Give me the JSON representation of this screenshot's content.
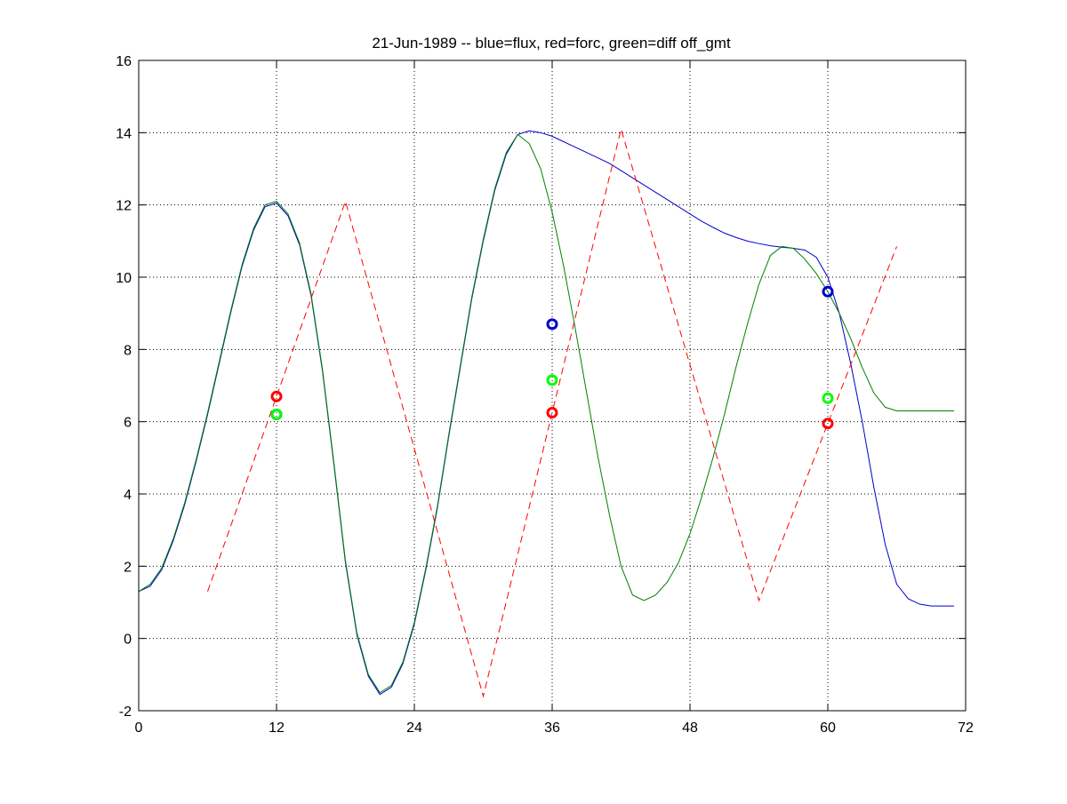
{
  "chart_data": {
    "type": "line",
    "title": "21-Jun-1989 -- blue=flux, red=forc, green=diff off_gmt",
    "xlabel": "",
    "ylabel": "",
    "xlim": [
      0,
      72
    ],
    "ylim": [
      -2,
      16
    ],
    "xticks": [
      0,
      12,
      24,
      36,
      48,
      60,
      72
    ],
    "yticks": [
      -2,
      0,
      2,
      4,
      6,
      8,
      10,
      12,
      14,
      16
    ],
    "xtick_labels": [
      "0",
      "12",
      "24",
      "36",
      "48",
      "60",
      "72"
    ],
    "ytick_labels": [
      "-2",
      "0",
      "2",
      "4",
      "6",
      "8",
      "10",
      "12",
      "14",
      "16"
    ],
    "grid": true,
    "series": [
      {
        "color": "#0000cc",
        "style": "solid",
        "x": [
          0,
          1,
          2,
          3,
          4,
          5,
          6,
          7,
          8,
          9,
          10,
          11,
          12,
          13,
          14,
          15,
          16,
          17,
          18,
          19,
          20,
          21,
          22,
          23,
          24,
          25,
          26,
          27,
          28,
          29,
          30,
          31,
          32,
          33,
          34,
          35,
          36,
          37,
          38,
          39,
          40,
          41,
          42,
          43,
          44,
          45,
          46,
          47,
          48,
          49,
          50,
          51,
          52,
          53,
          54,
          55,
          56,
          57,
          58,
          59,
          60,
          61,
          62,
          63,
          64,
          65,
          66,
          67,
          68,
          69,
          70,
          71
        ],
        "y": [
          1.3,
          1.45,
          1.9,
          2.7,
          3.7,
          4.9,
          6.2,
          7.6,
          9.0,
          10.3,
          11.3,
          11.95,
          12.05,
          11.7,
          10.9,
          9.5,
          7.4,
          4.8,
          2.1,
          0.1,
          -1.05,
          -1.55,
          -1.35,
          -0.7,
          0.4,
          1.9,
          3.6,
          5.6,
          7.5,
          9.4,
          11.0,
          12.4,
          13.4,
          13.95,
          14.05,
          14.0,
          13.9,
          13.75,
          13.6,
          13.45,
          13.3,
          13.15,
          12.95,
          12.75,
          12.55,
          12.35,
          12.15,
          11.95,
          11.75,
          11.55,
          11.38,
          11.22,
          11.1,
          11.0,
          10.93,
          10.87,
          10.83,
          10.8,
          10.75,
          10.55,
          10.0,
          9.0,
          7.6,
          6.0,
          4.2,
          2.6,
          1.5,
          1.1,
          0.95,
          0.9,
          0.9,
          0.9
        ]
      },
      {
        "color": "#008000",
        "style": "solid",
        "x": [
          0,
          1,
          2,
          3,
          4,
          5,
          6,
          7,
          8,
          9,
          10,
          11,
          12,
          13,
          14,
          15,
          16,
          17,
          18,
          19,
          20,
          21,
          22,
          23,
          24,
          25,
          26,
          27,
          28,
          29,
          30,
          31,
          32,
          33,
          34,
          35,
          36,
          37,
          38,
          39,
          40,
          41,
          42,
          43,
          44,
          45,
          46,
          47,
          48,
          49,
          50,
          51,
          52,
          53,
          54,
          55,
          56,
          57,
          58,
          59,
          60,
          61,
          62,
          63,
          64,
          65,
          66,
          67,
          68,
          69,
          70,
          71
        ],
        "y": [
          1.3,
          1.5,
          1.95,
          2.75,
          3.75,
          4.95,
          6.25,
          7.65,
          9.05,
          10.35,
          11.35,
          12.0,
          12.1,
          11.75,
          10.95,
          9.55,
          7.45,
          4.85,
          2.15,
          0.15,
          -1.0,
          -1.5,
          -1.3,
          -0.65,
          0.45,
          1.95,
          3.65,
          5.65,
          7.55,
          9.45,
          11.05,
          12.45,
          13.45,
          13.95,
          13.7,
          13.0,
          11.8,
          10.3,
          8.6,
          6.8,
          5.0,
          3.4,
          2.0,
          1.2,
          1.05,
          1.2,
          1.55,
          2.1,
          2.9,
          3.9,
          5.0,
          6.2,
          7.5,
          8.7,
          9.8,
          10.6,
          10.85,
          10.8,
          10.5,
          10.1,
          9.6,
          9.0,
          8.3,
          7.5,
          6.8,
          6.4,
          6.3,
          6.3,
          6.3,
          6.3,
          6.3,
          6.3
        ]
      },
      {
        "color": "#ff0000",
        "style": "dashed",
        "x": [
          6,
          18,
          30,
          42,
          54,
          66
        ],
        "y": [
          1.3,
          12.1,
          -1.6,
          14.1,
          1.05,
          10.85
        ]
      }
    ],
    "markers": [
      {
        "x": 12,
        "y": 6.2,
        "color": "#0000cc"
      },
      {
        "x": 12,
        "y": 6.2,
        "color": "#00ff00"
      },
      {
        "x": 12,
        "y": 6.7,
        "color": "#ff0000"
      },
      {
        "x": 36,
        "y": 8.7,
        "color": "#0000cc"
      },
      {
        "x": 36,
        "y": 7.15,
        "color": "#00ff00"
      },
      {
        "x": 36,
        "y": 6.25,
        "color": "#ff0000"
      },
      {
        "x": 60,
        "y": 9.6,
        "color": "#0000cc"
      },
      {
        "x": 60,
        "y": 6.65,
        "color": "#00ff00"
      },
      {
        "x": 60,
        "y": 5.95,
        "color": "#ff0000"
      }
    ]
  }
}
